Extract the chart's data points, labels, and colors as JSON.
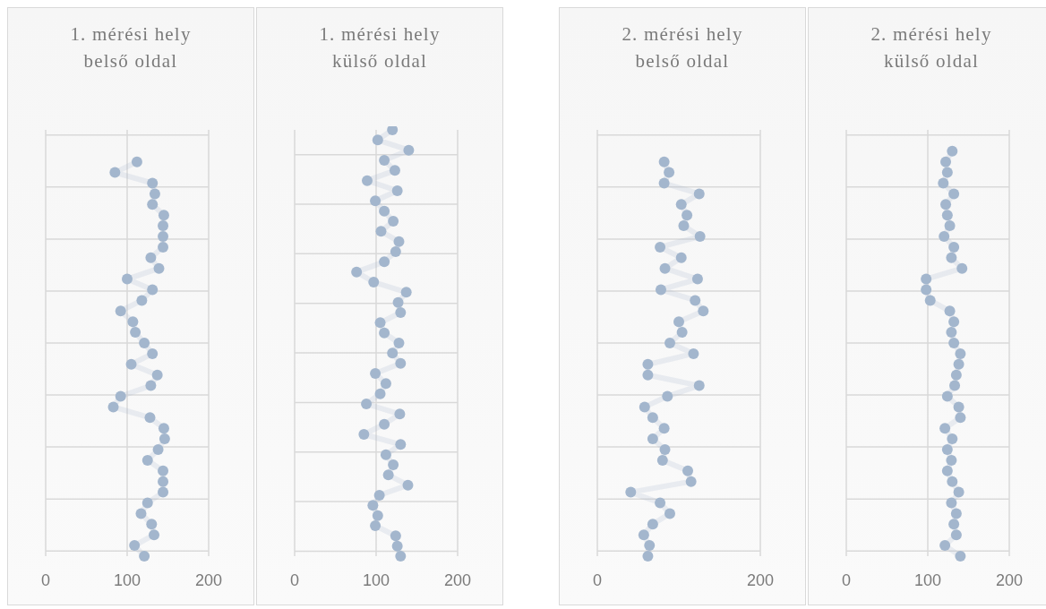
{
  "chart_data": [
    {
      "type": "line",
      "title": "1. mérési hely belső oldal",
      "orientation": "horizontal",
      "marker": "circle",
      "grid": true,
      "tick_labels": "x",
      "xlim": [
        0,
        200
      ],
      "xticks": [
        0,
        100,
        200
      ],
      "categories": [
        null,
        null,
        null,
        null,
        null,
        null,
        null,
        null,
        null,
        null,
        null,
        null,
        null,
        null,
        null,
        null,
        null,
        null,
        null,
        null,
        null,
        null,
        null,
        null,
        null,
        null,
        null,
        null,
        null,
        null,
        null,
        null,
        null,
        null,
        null,
        null,
        null,
        null,
        null,
        null,
        null
      ],
      "series": [
        {
          "color": "#a3b6cd",
          "values": [
            null,
            null,
            null,
            112,
            85,
            131,
            134,
            131,
            145,
            144,
            144,
            144,
            129,
            139,
            100,
            131,
            118,
            92,
            107,
            110,
            121,
            131,
            105,
            137,
            129,
            92,
            83,
            128,
            145,
            146,
            138,
            125,
            144,
            144,
            144,
            125,
            117,
            130,
            133,
            109,
            121
          ]
        }
      ]
    },
    {
      "type": "line",
      "title": "1. mérési hely külső oldal",
      "orientation": "horizontal",
      "marker": "circle",
      "grid": true,
      "tick_labels": "x",
      "xlim": [
        0,
        200
      ],
      "xticks": [
        0,
        100,
        200
      ],
      "categories": [
        null,
        null,
        null,
        null,
        null,
        null,
        null,
        null,
        null,
        null,
        null,
        null,
        null,
        null,
        null,
        null,
        null,
        null,
        null,
        null,
        null,
        null,
        null,
        null,
        null,
        null,
        null,
        null,
        null,
        null,
        null,
        null,
        null,
        null,
        null,
        null,
        null,
        null,
        null,
        null,
        null,
        null,
        null
      ],
      "series": [
        {
          "color": "#a3b6cd",
          "values": [
            120,
            102,
            140,
            110,
            123,
            89,
            126,
            99,
            110,
            121,
            106,
            128,
            124,
            110,
            76,
            97,
            137,
            127,
            130,
            105,
            110,
            128,
            120,
            130,
            99,
            112,
            105,
            88,
            129,
            110,
            85,
            130,
            112,
            121,
            115,
            139,
            104,
            96,
            102,
            99,
            124,
            126,
            130
          ]
        }
      ]
    },
    {
      "type": "line",
      "title": "2. mérési hely belső oldal",
      "orientation": "horizontal",
      "marker": "circle",
      "grid": "y",
      "tick_labels": "x",
      "xlim": [
        0,
        200
      ],
      "xticks": [
        0,
        200
      ],
      "categories": [
        null,
        null,
        null,
        null,
        null,
        null,
        null,
        null,
        null,
        null,
        null,
        null,
        null,
        null,
        null,
        null,
        null,
        null,
        null,
        null,
        null,
        null,
        null,
        null,
        null,
        null,
        null,
        null,
        null,
        null,
        null,
        null,
        null,
        null,
        null,
        null,
        null,
        null,
        null,
        null,
        null
      ],
      "series": [
        {
          "color": "#a3b6cd",
          "values": [
            null,
            null,
            null,
            82,
            88,
            82,
            125,
            103,
            110,
            106,
            126,
            77,
            103,
            83,
            123,
            78,
            120,
            130,
            100,
            104,
            89,
            118,
            62,
            62,
            125,
            86,
            58,
            68,
            82,
            68,
            83,
            80,
            111,
            115,
            41,
            77,
            89,
            68,
            57,
            64,
            62
          ]
        }
      ]
    },
    {
      "type": "line",
      "title": "2. mérési hely külső oldal",
      "orientation": "horizontal",
      "marker": "circle",
      "grid": true,
      "tick_labels": "x",
      "xlim": [
        0,
        200
      ],
      "xticks": [
        0,
        100,
        200
      ],
      "categories": [
        null,
        null,
        null,
        null,
        null,
        null,
        null,
        null,
        null,
        null,
        null,
        null,
        null,
        null,
        null,
        null,
        null,
        null,
        null,
        null,
        null,
        null,
        null,
        null,
        null,
        null,
        null,
        null,
        null,
        null,
        null,
        null,
        null,
        null,
        null,
        null,
        null,
        null,
        null,
        null,
        null
      ],
      "series": [
        {
          "color": "#a3b6cd",
          "values": [
            null,
            null,
            130,
            122,
            124,
            119,
            132,
            122,
            124,
            127,
            120,
            132,
            129,
            142,
            98,
            98,
            103,
            127,
            132,
            129,
            132,
            140,
            138,
            135,
            133,
            124,
            138,
            140,
            121,
            130,
            124,
            129,
            124,
            130,
            138,
            129,
            135,
            132,
            135,
            121,
            140
          ]
        }
      ]
    }
  ]
}
